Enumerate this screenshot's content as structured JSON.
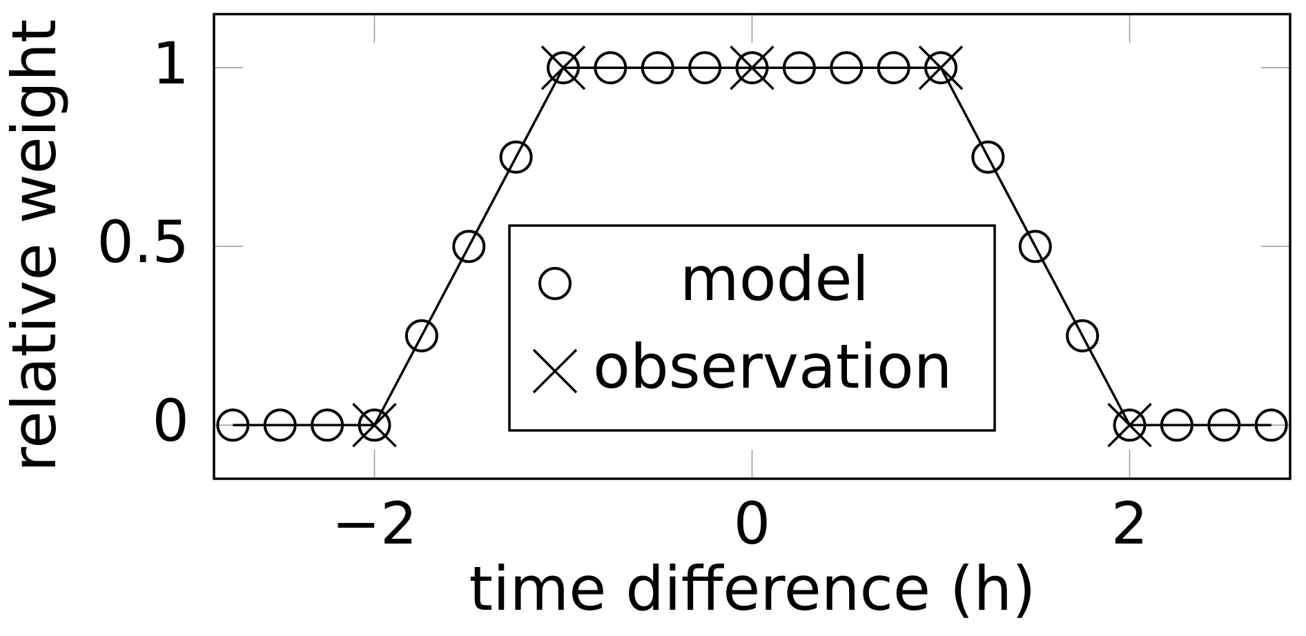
{
  "chart_data": {
    "type": "line",
    "x_label": "time difference (h)",
    "y_label": "relative weight",
    "series": [
      {
        "name": "model",
        "color": "#000000",
        "marker": "circle",
        "line": true,
        "x": [
          -2.75,
          -2.5,
          -2.25,
          -2,
          -1.75,
          -1.5,
          -1.25,
          -1,
          -0.75,
          -0.5,
          -0.25,
          0,
          0.25,
          0.5,
          0.75,
          1,
          1.25,
          1.5,
          1.75,
          2,
          2.25,
          2.5,
          2.75
        ],
        "values": [
          0,
          0,
          0,
          0,
          0.25,
          0.5,
          0.75,
          1,
          1,
          1,
          1,
          1,
          1,
          1,
          1,
          1,
          0.75,
          0.5,
          0.25,
          0,
          0,
          0,
          0
        ]
      },
      {
        "name": "observation",
        "color": "#000000",
        "marker": "cross",
        "line": false,
        "x": [
          -2,
          -1,
          0,
          1,
          2
        ],
        "values": [
          0,
          1,
          1,
          1,
          0
        ]
      }
    ],
    "xlim": [
      -2.85,
      2.85
    ],
    "ylim": [
      -0.15,
      1.15
    ],
    "xticks": [
      {
        "value": -2,
        "label": "−2"
      },
      0,
      2
    ],
    "yticks": [
      0,
      0.5,
      1
    ],
    "legend": "center"
  }
}
